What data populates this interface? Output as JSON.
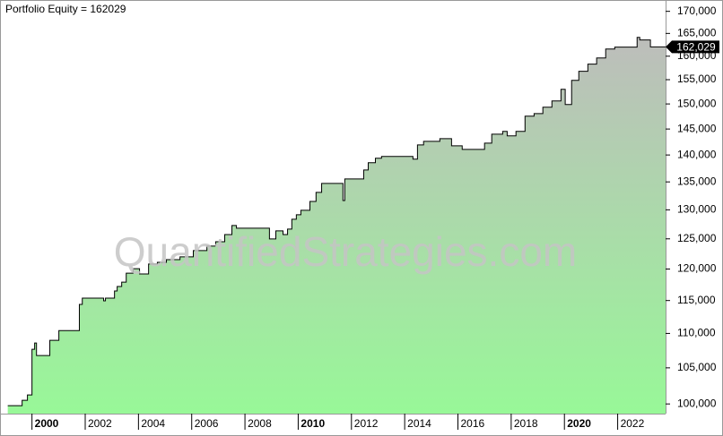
{
  "chart_data": {
    "type": "line",
    "title": "Portfolio Equity = 162029",
    "watermark": "QuantifiedStrategies.com",
    "step": true,
    "log_y": true,
    "fill_gradient": [
      "#bdbdbb",
      "#98f898"
    ],
    "x": [
      1999.09,
      1999.49,
      1999.63,
      1999.83,
      2000.0,
      2000.1,
      2000.17,
      2000.57,
      2000.67,
      2001.01,
      2001.75,
      2001.78,
      2001.89,
      2002.69,
      2002.76,
      2003.1,
      2003.2,
      2003.37,
      2003.54,
      2003.8,
      2004.04,
      2004.38,
      2004.71,
      2005.05,
      2005.56,
      2006.06,
      2006.57,
      2006.9,
      2007.24,
      2007.51,
      2007.68,
      2008.42,
      2008.92,
      2009.16,
      2009.43,
      2009.6,
      2009.76,
      2009.93,
      2010.1,
      2010.44,
      2010.67,
      2010.88,
      2011.14,
      2011.68,
      2011.75,
      2011.95,
      2012.46,
      2012.63,
      2012.9,
      2013.13,
      2013.64,
      2014.31,
      2014.48,
      2014.71,
      2015.32,
      2015.76,
      2016.16,
      2017.0,
      2017.27,
      2017.68,
      2017.85,
      2018.18,
      2018.52,
      2018.86,
      2019.19,
      2019.53,
      2019.87,
      2020.03,
      2020.27,
      2020.54,
      2020.88,
      2021.21,
      2021.55,
      2021.89,
      2022.22,
      2022.73,
      2022.83,
      2023.23,
      2023.57
    ],
    "series": [
      {
        "color": "#000000",
        "values": [
          99760,
          99760,
          100490,
          101220,
          107670,
          108580,
          106760,
          106760,
          108980,
          110430,
          110430,
          114400,
          115370,
          114960,
          115370,
          116490,
          117200,
          117900,
          119330,
          120060,
          119200,
          120820,
          121100,
          121530,
          121990,
          123030,
          123780,
          124520,
          125730,
          127280,
          126810,
          126810,
          124980,
          126350,
          125730,
          126660,
          128360,
          129130,
          129910,
          131490,
          133100,
          134720,
          134720,
          131640,
          135550,
          135550,
          137200,
          138540,
          139380,
          139720,
          139720,
          139220,
          141910,
          142610,
          143130,
          141750,
          141060,
          142270,
          143990,
          144530,
          143660,
          144530,
          147540,
          148060,
          149340,
          150620,
          152990,
          149890,
          154870,
          156770,
          158290,
          159620,
          161560,
          161970,
          161970,
          164120,
          163550,
          162029,
          162029
        ]
      }
    ],
    "last_label": {
      "value": 162029,
      "label": "162,029"
    },
    "xlim": [
      1998.9,
      2023.8
    ],
    "xticks": [
      2000,
      2002,
      2004,
      2006,
      2008,
      2010,
      2012,
      2014,
      2016,
      2018,
      2020,
      2022
    ],
    "ylim": [
      98700,
      172000
    ],
    "yticks": [
      {
        "value": 100000,
        "label": "100,000"
      },
      {
        "value": 105000,
        "label": "105,000"
      },
      {
        "value": 110000,
        "label": "110,000"
      },
      {
        "value": 115000,
        "label": "115,000"
      },
      {
        "value": 120000,
        "label": "120,000"
      },
      {
        "value": 125000,
        "label": "125,000"
      },
      {
        "value": 130000,
        "label": "130,000"
      },
      {
        "value": 135000,
        "label": "135,000"
      },
      {
        "value": 140000,
        "label": "140,000"
      },
      {
        "value": 145000,
        "label": "145,000"
      },
      {
        "value": 150000,
        "label": "150,000"
      },
      {
        "value": 155000,
        "label": "155,000"
      },
      {
        "value": 160000,
        "label": "160,000"
      },
      {
        "value": 165000,
        "label": "165,000"
      },
      {
        "value": 170000,
        "label": "170,000"
      }
    ]
  }
}
